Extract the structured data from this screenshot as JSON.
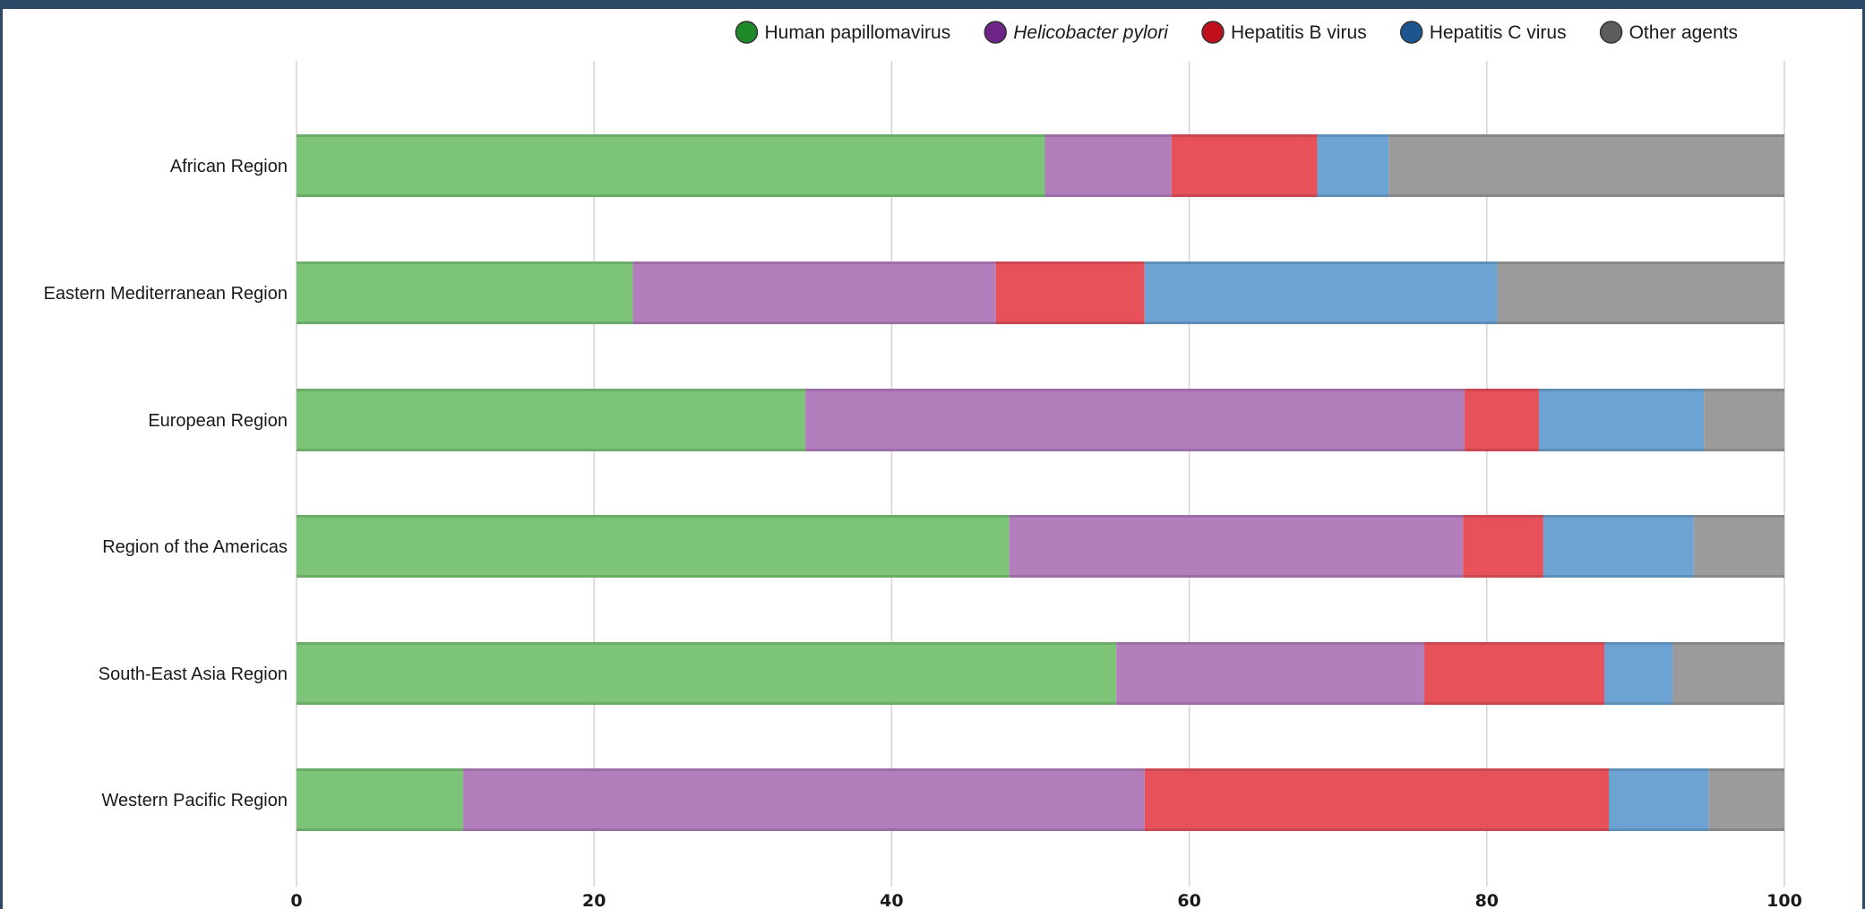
{
  "chart_data": {
    "type": "bar",
    "orientation": "horizontal",
    "stacked": true,
    "categories": [
      "African Region",
      "Eastern Mediterranean Region",
      "European Region",
      "Region of the Americas",
      "South-East Asia Region",
      "Western Pacific Region"
    ],
    "series": [
      {
        "name": "Human papillomavirus",
        "color": "#7bc478",
        "marker_color": "#1f8a2a",
        "italic": false,
        "values": [
          50.3,
          22.6,
          34.2,
          47.9,
          55.1,
          11.2
        ]
      },
      {
        "name": "Helicobacter pylori",
        "color": "#b27ebc",
        "marker_color": "#6e2386",
        "italic": true,
        "values": [
          8.5,
          24.4,
          44.3,
          30.5,
          20.7,
          45.8
        ]
      },
      {
        "name": "Hepatitis B virus",
        "color": "#e6515a",
        "marker_color": "#c0101c",
        "italic": false,
        "values": [
          9.8,
          10.0,
          5.0,
          5.4,
          12.1,
          31.2
        ]
      },
      {
        "name": "Hepatitis C virus",
        "color": "#6ca3d3",
        "marker_color": "#1d5591",
        "italic": false,
        "values": [
          4.8,
          23.7,
          11.1,
          10.1,
          4.6,
          6.7
        ]
      },
      {
        "name": "Other agents",
        "color": "#9b9b9b",
        "marker_color": "#5c5c5c",
        "italic": false,
        "values": [
          26.6,
          19.3,
          5.4,
          6.1,
          7.5,
          5.1
        ]
      }
    ],
    "xlim": [
      0,
      100
    ],
    "xticks": [
      "0",
      "20",
      "40",
      "60",
      "80",
      "100"
    ],
    "grid": true,
    "legend_position": "top-right",
    "title": "",
    "xlabel": "",
    "ylabel": ""
  }
}
